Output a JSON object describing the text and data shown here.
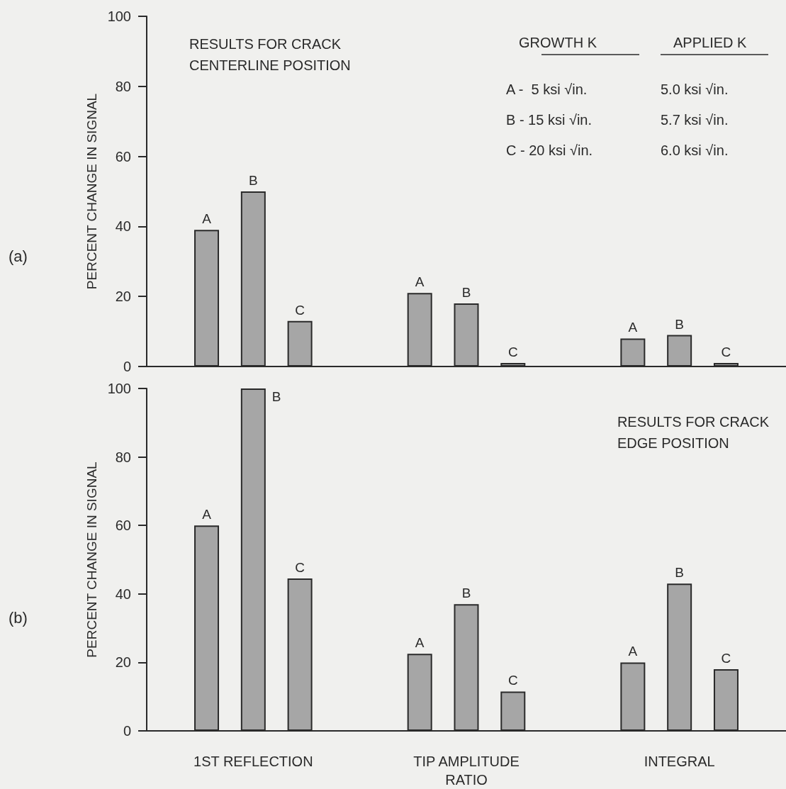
{
  "chart_data": [
    {
      "type": "bar",
      "title": "RESULTS FOR CRACK\nCENTERLINE POSITION",
      "ylabel": "PERCENT CHANGE IN SIGNAL",
      "categories": [
        null,
        null,
        null
      ],
      "series": [
        {
          "name": "A",
          "color": "#a6a6a6",
          "values": [
            39,
            21,
            8
          ]
        },
        {
          "name": "B",
          "color": "#a6a6a6",
          "values": [
            50,
            18,
            9
          ]
        },
        {
          "name": "C",
          "color": "#a6a6a6",
          "values": [
            13,
            1,
            1
          ]
        }
      ],
      "ylim": [
        0,
        100
      ],
      "yticks": [
        0,
        20,
        40,
        60,
        80,
        100
      ],
      "grid": false,
      "legend": false,
      "tick_labels": "y",
      "annotations": [
        "(a)",
        "GROWTH K",
        "APPLIED K",
        "A -  5 ksi √in.",
        "5.0 ksi √in.",
        "B - 15 ksi √in.",
        "5.7 ksi √in.",
        "C - 20 ksi √in.",
        "6.0 ksi √in."
      ]
    },
    {
      "type": "bar",
      "title": "RESULTS FOR CRACK\nEDGE POSITION",
      "ylabel": "PERCENT CHANGE IN SIGNAL",
      "categories": [
        "1ST REFLECTION",
        "TIP AMPLITUDE\nRATIO",
        "INTEGRAL"
      ],
      "series": [
        {
          "name": "A",
          "color": "#a6a6a6",
          "values": [
            60,
            22.5,
            20
          ]
        },
        {
          "name": "B",
          "color": "#a6a6a6",
          "values": [
            100,
            37,
            43
          ]
        },
        {
          "name": "C",
          "color": "#a6a6a6",
          "values": [
            44.5,
            11.5,
            18
          ]
        }
      ],
      "ylim": [
        0,
        100
      ],
      "yticks": [
        0,
        20,
        40,
        60,
        80,
        100
      ],
      "grid": false,
      "legend": false,
      "annotations": [
        "(b)"
      ]
    }
  ]
}
